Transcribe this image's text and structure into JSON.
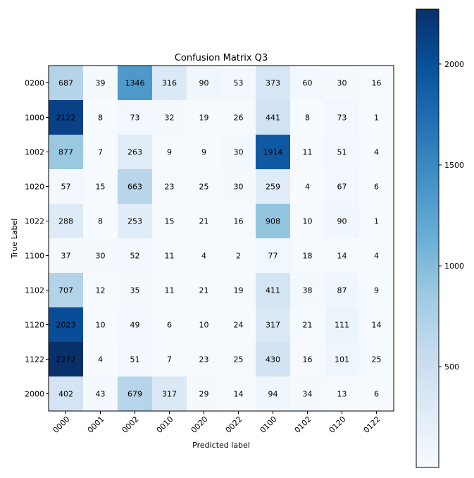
{
  "chart_data": {
    "type": "heatmap",
    "title": "Confusion Matrix Q3",
    "xlabel": "Predicted label",
    "ylabel": "True Label",
    "x_categories": [
      "0000",
      "0001",
      "0002",
      "0010",
      "0020",
      "0022",
      "0100",
      "0102",
      "0120",
      "0122"
    ],
    "y_categories": [
      "0200",
      "1000",
      "1002",
      "1020",
      "1022",
      "1100",
      "1102",
      "1120",
      "1122",
      "2000"
    ],
    "values": [
      [
        687,
        39,
        1346,
        316,
        90,
        53,
        373,
        60,
        30,
        16
      ],
      [
        2122,
        8,
        73,
        32,
        19,
        26,
        441,
        8,
        73,
        1
      ],
      [
        877,
        7,
        263,
        9,
        9,
        30,
        1914,
        11,
        51,
        4
      ],
      [
        57,
        15,
        663,
        23,
        25,
        30,
        259,
        4,
        67,
        6
      ],
      [
        288,
        8,
        253,
        15,
        21,
        16,
        908,
        10,
        90,
        1
      ],
      [
        37,
        30,
        52,
        11,
        4,
        2,
        77,
        18,
        14,
        4
      ],
      [
        707,
        12,
        35,
        11,
        21,
        19,
        411,
        38,
        87,
        9
      ],
      [
        2023,
        10,
        49,
        6,
        10,
        24,
        317,
        21,
        111,
        14
      ],
      [
        2272,
        4,
        51,
        7,
        23,
        25,
        430,
        16,
        101,
        25
      ],
      [
        402,
        43,
        679,
        317,
        29,
        14,
        94,
        34,
        13,
        6
      ]
    ],
    "colormap": "Blues",
    "vmin": 1,
    "vmax": 2272,
    "colorbar_ticks": [
      500,
      1000,
      1500,
      2000
    ],
    "grid": false
  }
}
